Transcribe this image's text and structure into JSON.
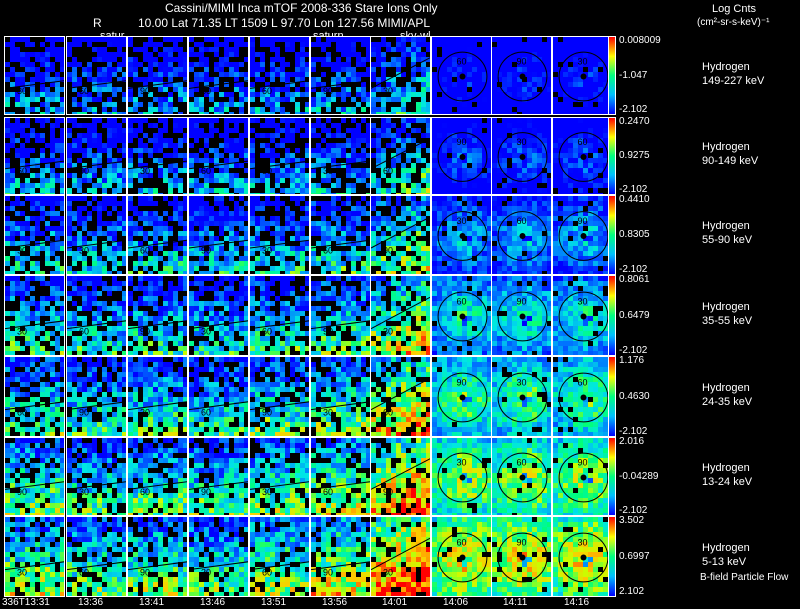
{
  "header": {
    "line1": "Cassini/MIMI Inca mTOF  2008-336   Stare   Ions Only",
    "line2_r": "R",
    "line2": "10.00 Lat 71.35 LT 1509 L          97.70 Lon          127.56  MIMI/APL",
    "units_title": "Log Cnts",
    "units": "(cm²-sr-s-keV)⁻¹"
  },
  "panel_labels": {
    "left": "satur",
    "mid": "saturn",
    "right": "sky-wl"
  },
  "footer": {
    "note": "B-field Particle Flow"
  },
  "chart_data": {
    "type": "heatmap",
    "title": "Cassini/MIMI Inca mTOF 2008-336 Stare Ions Only",
    "times": [
      "336T13:31",
      "13:36",
      "13:41",
      "13:46",
      "13:51",
      "13:56",
      "14:01",
      "14:06",
      "14:11",
      "14:16"
    ],
    "rows": [
      {
        "species": "Hydrogen",
        "energy": "149-227 keV",
        "max": "0.008009",
        "mid": "-1.047",
        "min": "-2.102"
      },
      {
        "species": "Hydrogen",
        "energy": "90-149 keV",
        "max": "0.2470",
        "mid": "0.9275",
        "min": "-2.102"
      },
      {
        "species": "Hydrogen",
        "energy": "55-90 keV",
        "max": "0.4410",
        "mid": "0.8305",
        "min": "-2.102"
      },
      {
        "species": "Hydrogen",
        "energy": "35-55 keV",
        "max": "0.8061",
        "mid": "0.6479",
        "min": "-2.102"
      },
      {
        "species": "Hydrogen",
        "energy": "24-35 keV",
        "max": "1.176",
        "mid": "0.4630",
        "min": "-2.102"
      },
      {
        "species": "Hydrogen",
        "energy": "13-24 keV",
        "max": "2.016",
        "mid": "-0.04289",
        "min": "-2.102"
      },
      {
        "species": "Hydrogen",
        "energy": "5-13 keV",
        "max": "3.502",
        "mid": "0.6997",
        "min": "2.102"
      }
    ],
    "row_intensity": [
      0.1,
      0.18,
      0.35,
      0.48,
      0.58,
      0.68,
      0.78
    ],
    "col_intensity": [
      0.55,
      0.45,
      0.5,
      0.45,
      0.55,
      0.65,
      0.85,
      1.0,
      1.0,
      1.0
    ],
    "contour_labels": [
      "30",
      "60",
      "90"
    ],
    "colorscale": "rainbow",
    "colors": {
      "low": "#0000ff",
      "mid": "#00ff80",
      "high": "#ff0000"
    }
  }
}
